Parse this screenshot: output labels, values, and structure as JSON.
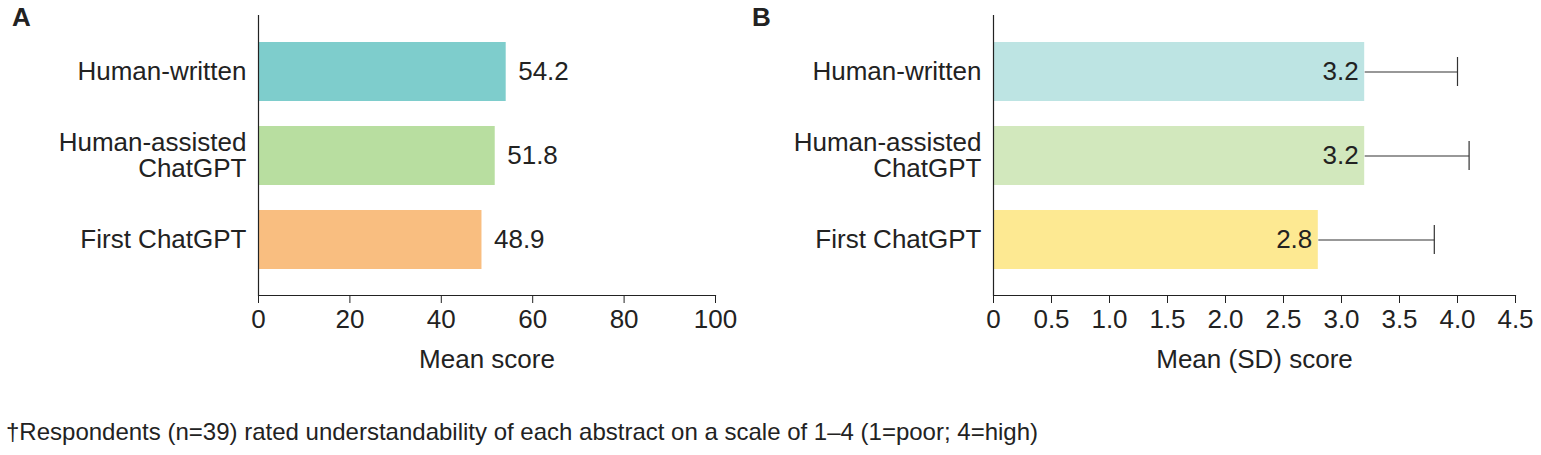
{
  "chart_data": [
    {
      "type": "bar",
      "panel": "A",
      "orientation": "horizontal",
      "data_labels": true,
      "categories": [
        "Human-written",
        "Human-assisted ChatGPT",
        "First ChatGPT"
      ],
      "values": [
        54.2,
        51.8,
        48.9
      ],
      "colors": [
        "#7ecdcc",
        "#b8dea0",
        "#f9be80"
      ],
      "xlabel": "Mean score",
      "xlim": [
        0,
        100
      ],
      "xticks": [
        0,
        20,
        40,
        60,
        80,
        100
      ]
    },
    {
      "type": "bar",
      "panel": "B",
      "orientation": "horizontal",
      "data_labels": true,
      "categories": [
        "Human-written",
        "Human-assisted ChatGPT",
        "First ChatGPT"
      ],
      "values": [
        3.2,
        3.2,
        2.8
      ],
      "sd": [
        0.8,
        0.9,
        1.0
      ],
      "colors": [
        "#bde4e3",
        "#d2e8bd",
        "#fde992"
      ],
      "xlabel": "Mean (SD) score",
      "xlim": [
        0,
        4.5
      ],
      "xticks": [
        0,
        0.5,
        {
          "value": 1,
          "label": "1.0"
        },
        1.5,
        {
          "value": 2,
          "label": "2.0"
        },
        2.5,
        {
          "value": 3,
          "label": "3.0"
        },
        3.5,
        {
          "value": 4,
          "label": "4.0"
        },
        4.5
      ]
    }
  ],
  "footnote": "†Respondents (n=39) rated understandability of each abstract on a scale of 1–4 (1=poor; 4=high)"
}
